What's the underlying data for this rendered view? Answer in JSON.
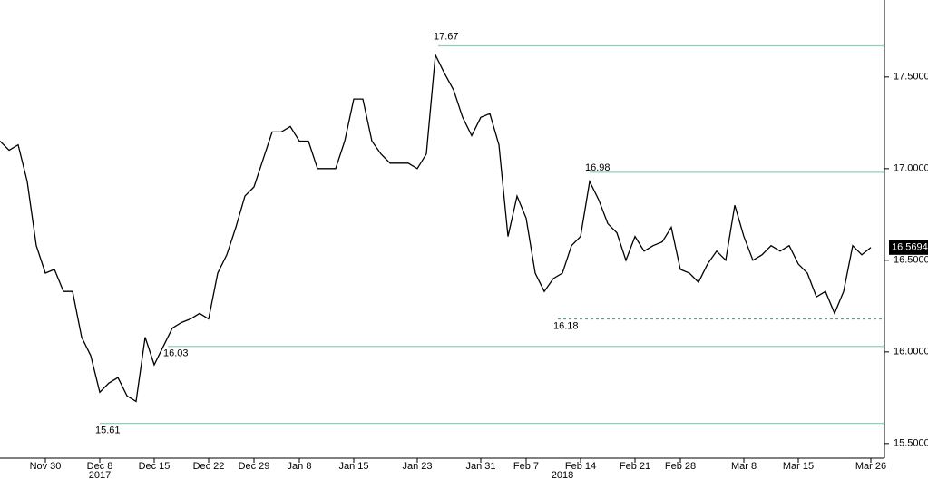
{
  "chart_data": {
    "type": "line",
    "values": [
      17.15,
      17.1,
      17.13,
      16.93,
      16.58,
      16.43,
      16.45,
      16.33,
      16.33,
      16.08,
      15.98,
      15.78,
      15.83,
      15.86,
      15.76,
      15.73,
      16.08,
      15.93,
      16.03,
      16.13,
      16.16,
      16.18,
      16.21,
      16.18,
      16.43,
      16.53,
      16.68,
      16.85,
      16.9,
      17.05,
      17.2,
      17.2,
      17.23,
      17.15,
      17.15,
      17.0,
      17.0,
      17.0,
      17.15,
      17.38,
      17.38,
      17.15,
      17.08,
      17.03,
      17.03,
      17.03,
      17.0,
      17.08,
      17.62,
      17.52,
      17.43,
      17.28,
      17.18,
      17.28,
      17.3,
      17.13,
      16.63,
      16.85,
      16.73,
      16.43,
      16.33,
      16.4,
      16.43,
      16.58,
      16.63,
      16.93,
      16.83,
      16.7,
      16.65,
      16.5,
      16.63,
      16.55,
      16.58,
      16.6,
      16.68,
      16.45,
      16.43,
      16.38,
      16.48,
      16.55,
      16.5,
      16.8,
      16.63,
      16.5,
      16.53,
      16.58,
      16.55,
      16.58,
      16.48,
      16.43,
      16.3,
      16.33,
      16.21,
      16.33,
      16.58,
      16.53,
      16.57
    ],
    "color": "#000000",
    "xlim": [
      0,
      97.5
    ],
    "xticks": [
      {
        "value": 5,
        "label": "Nov 30"
      },
      {
        "value": 11,
        "label": "Dec 8"
      },
      {
        "value": 17,
        "label": "Dec 15"
      },
      {
        "value": 23,
        "label": "Dec 22"
      },
      {
        "value": 28,
        "label": "Dec 29"
      },
      {
        "value": 33,
        "label": "Jan 8"
      },
      {
        "value": 39,
        "label": "Jan 15"
      },
      {
        "value": 46,
        "label": "Jan 23"
      },
      {
        "value": 53,
        "label": "Jan 31"
      },
      {
        "value": 58,
        "label": "Feb 7"
      },
      {
        "value": 64,
        "label": "Feb 14"
      },
      {
        "value": 70,
        "label": "Feb 21"
      },
      {
        "value": 75,
        "label": "Feb 28"
      },
      {
        "value": 82,
        "label": "Mar 8"
      },
      {
        "value": 88,
        "label": "Mar 15"
      },
      {
        "value": 96,
        "label": "Mar 26"
      }
    ],
    "year_labels": [
      {
        "value": 11,
        "label": "2017"
      },
      {
        "value": 62,
        "label": "2018"
      }
    ],
    "ylim": [
      15.42,
      17.92
    ],
    "yticks": [
      {
        "value": 15.5,
        "label": "15.5000"
      },
      {
        "value": 16,
        "label": "16.0000"
      },
      {
        "value": 16.5,
        "label": "16.5000"
      },
      {
        "value": 17,
        "label": "17.0000"
      },
      {
        "value": 17.5,
        "label": "17.5000"
      }
    ],
    "levels": [
      17.67,
      16.98,
      16.18,
      16.03,
      15.61
    ],
    "level_color": "#8fcfc0",
    "last_value": {
      "value": 16.5694,
      "label": "16.5694"
    }
  }
}
